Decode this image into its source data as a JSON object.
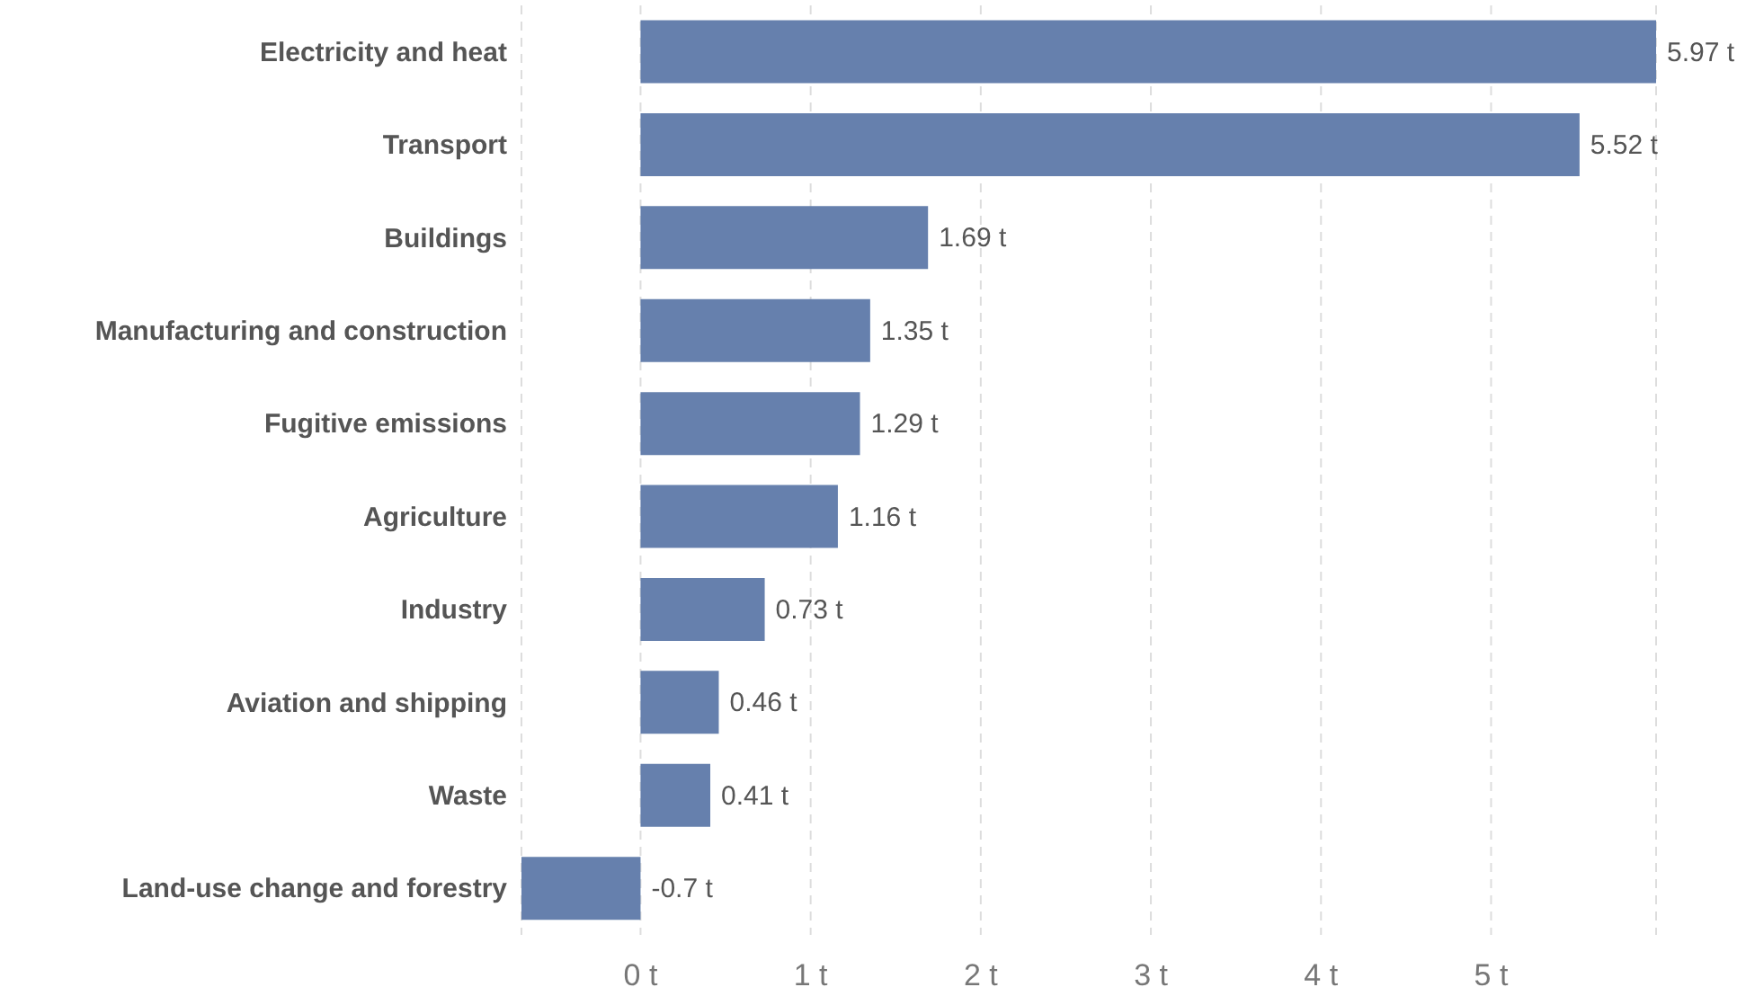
{
  "chart_data": {
    "type": "bar",
    "orientation": "horizontal",
    "categories": [
      "Electricity and heat",
      "Transport",
      "Buildings",
      "Manufacturing and construction",
      "Fugitive emissions",
      "Agriculture",
      "Industry",
      "Aviation and shipping",
      "Waste",
      "Land-use change and forestry"
    ],
    "values": [
      5.97,
      5.52,
      1.69,
      1.35,
      1.29,
      1.16,
      0.73,
      0.46,
      0.41,
      -0.7
    ],
    "color": "#6680ad",
    "value_labels": [
      "5.97 t",
      "5.52 t",
      "1.69 t",
      "1.35 t",
      "1.29 t",
      "1.16 t",
      "0.73 t",
      "0.46 t",
      "0.41 t",
      "-0.7 t"
    ],
    "xlim": [
      -0.7,
      5.97
    ],
    "xticks": [
      {
        "value": 0,
        "label": "0 t"
      },
      {
        "value": 1,
        "label": "1 t"
      },
      {
        "value": 2,
        "label": "2 t"
      },
      {
        "value": 3,
        "label": "3 t"
      },
      {
        "value": 4,
        "label": "4 t"
      },
      {
        "value": 5,
        "label": "5 t"
      }
    ],
    "grid": "x",
    "legend": false
  }
}
